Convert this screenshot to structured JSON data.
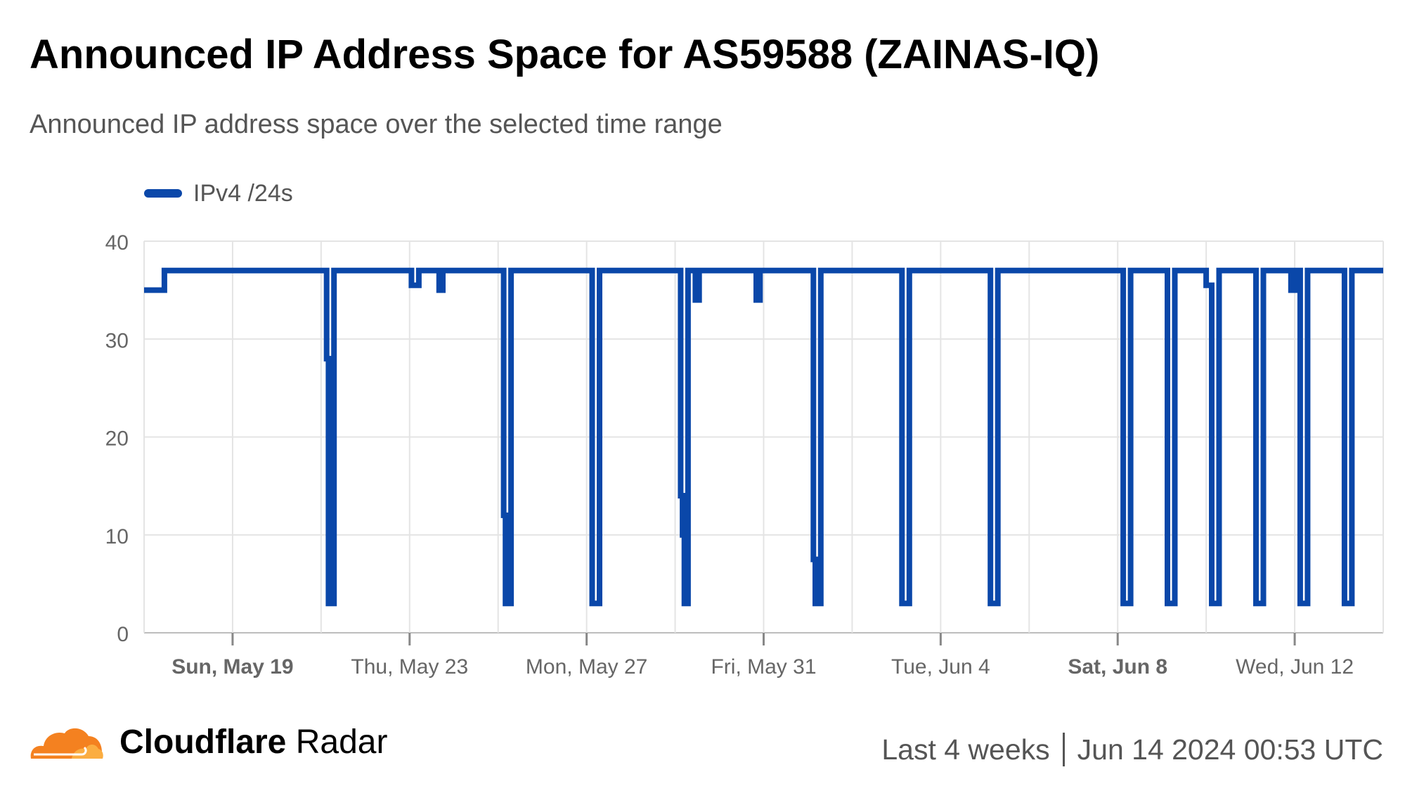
{
  "header": {
    "title": "Announced IP Address Space for AS59588 (ZAINAS-IQ)",
    "subtitle": "Announced IP address space over the selected time range"
  },
  "legend": {
    "label": "IPv4 /24s"
  },
  "footer": {
    "brand_bold": "Cloudflare",
    "brand_light": "Radar",
    "range": "Last 4 weeks",
    "timestamp": "Jun 14 2024 00:53 UTC"
  },
  "colors": {
    "series": "#0a47a9",
    "grid": "#e4e4e4",
    "brand": "#f48120"
  },
  "chart_data": {
    "type": "line",
    "x_start": "2024-05-17 00:00",
    "x_end": "2024-06-14 00:00",
    "ylim": [
      0,
      40
    ],
    "yticks": [
      0,
      10,
      20,
      30,
      40
    ],
    "xticks": [
      {
        "date": "2024-05-19",
        "label": "Sun, May 19",
        "bold": true
      },
      {
        "date": "2024-05-23",
        "label": "Thu, May 23",
        "bold": false
      },
      {
        "date": "2024-05-27",
        "label": "Mon, May 27",
        "bold": false
      },
      {
        "date": "2024-05-31",
        "label": "Fri, May 31",
        "bold": false
      },
      {
        "date": "2024-06-04",
        "label": "Tue, Jun 4",
        "bold": false
      },
      {
        "date": "2024-06-08",
        "label": "Sat, Jun 8",
        "bold": true
      },
      {
        "date": "2024-06-12",
        "label": "Wed, Jun 12",
        "bold": false
      }
    ],
    "grid": true,
    "legend_position": "top-left",
    "series": [
      {
        "name": "IPv4 /24s",
        "points": [
          [
            "2024-05-17 00:00",
            35
          ],
          [
            "2024-05-17 11:00",
            35
          ],
          [
            "2024-05-17 11:00",
            37
          ],
          [
            "2024-05-21 03:00",
            37
          ],
          [
            "2024-05-21 03:00",
            28
          ],
          [
            "2024-05-21 04:00",
            28
          ],
          [
            "2024-05-21 04:00",
            3
          ],
          [
            "2024-05-21 07:00",
            3
          ],
          [
            "2024-05-21 07:00",
            37
          ],
          [
            "2024-05-23 01:00",
            37
          ],
          [
            "2024-05-23 01:00",
            35.5
          ],
          [
            "2024-05-23 05:00",
            35.5
          ],
          [
            "2024-05-23 05:00",
            37
          ],
          [
            "2024-05-23 16:00",
            37
          ],
          [
            "2024-05-23 16:00",
            35
          ],
          [
            "2024-05-23 18:00",
            35
          ],
          [
            "2024-05-23 18:00",
            37
          ],
          [
            "2024-05-25 03:00",
            37
          ],
          [
            "2024-05-25 03:00",
            12
          ],
          [
            "2024-05-25 04:00",
            12
          ],
          [
            "2024-05-25 04:00",
            3
          ],
          [
            "2024-05-25 07:00",
            3
          ],
          [
            "2024-05-25 07:00",
            37
          ],
          [
            "2024-05-27 03:00",
            37
          ],
          [
            "2024-05-27 03:00",
            3
          ],
          [
            "2024-05-27 07:00",
            3
          ],
          [
            "2024-05-27 07:00",
            37
          ],
          [
            "2024-05-29 03:00",
            37
          ],
          [
            "2024-05-29 03:00",
            14
          ],
          [
            "2024-05-29 04:00",
            14
          ],
          [
            "2024-05-29 04:00",
            10
          ],
          [
            "2024-05-29 05:00",
            10
          ],
          [
            "2024-05-29 05:00",
            3
          ],
          [
            "2024-05-29 07:00",
            3
          ],
          [
            "2024-05-29 07:00",
            37
          ],
          [
            "2024-05-29 11:00",
            37
          ],
          [
            "2024-05-29 11:00",
            34
          ],
          [
            "2024-05-29 13:00",
            34
          ],
          [
            "2024-05-29 13:00",
            37
          ],
          [
            "2024-05-30 20:00",
            37
          ],
          [
            "2024-05-30 20:00",
            34
          ],
          [
            "2024-05-30 22:00",
            34
          ],
          [
            "2024-05-30 22:00",
            37
          ],
          [
            "2024-06-01 03:00",
            37
          ],
          [
            "2024-06-01 03:00",
            7.5
          ],
          [
            "2024-06-01 04:00",
            7.5
          ],
          [
            "2024-06-01 04:00",
            3
          ],
          [
            "2024-06-01 07:00",
            3
          ],
          [
            "2024-06-01 07:00",
            37
          ],
          [
            "2024-06-03 03:00",
            37
          ],
          [
            "2024-06-03 03:00",
            3
          ],
          [
            "2024-06-03 07:00",
            3
          ],
          [
            "2024-06-03 07:00",
            37
          ],
          [
            "2024-06-05 03:00",
            37
          ],
          [
            "2024-06-05 03:00",
            3
          ],
          [
            "2024-06-05 07:00",
            3
          ],
          [
            "2024-06-05 07:00",
            37
          ],
          [
            "2024-06-08 03:00",
            37
          ],
          [
            "2024-06-08 03:00",
            3
          ],
          [
            "2024-06-08 07:00",
            3
          ],
          [
            "2024-06-08 07:00",
            37
          ],
          [
            "2024-06-09 03:00",
            37
          ],
          [
            "2024-06-09 03:00",
            3
          ],
          [
            "2024-06-09 07:00",
            3
          ],
          [
            "2024-06-09 07:00",
            37
          ],
          [
            "2024-06-10 00:00",
            37
          ],
          [
            "2024-06-10 00:00",
            35.5
          ],
          [
            "2024-06-10 03:00",
            35.5
          ],
          [
            "2024-06-10 03:00",
            3
          ],
          [
            "2024-06-10 07:00",
            3
          ],
          [
            "2024-06-10 07:00",
            37
          ],
          [
            "2024-06-11 03:00",
            37
          ],
          [
            "2024-06-11 03:00",
            3
          ],
          [
            "2024-06-11 07:00",
            3
          ],
          [
            "2024-06-11 07:00",
            37
          ],
          [
            "2024-06-11 22:00",
            37
          ],
          [
            "2024-06-11 22:00",
            35
          ],
          [
            "2024-06-12 00:00",
            35
          ],
          [
            "2024-06-12 00:00",
            37
          ],
          [
            "2024-06-12 03:00",
            37
          ],
          [
            "2024-06-12 03:00",
            3
          ],
          [
            "2024-06-12 07:00",
            3
          ],
          [
            "2024-06-12 07:00",
            37
          ],
          [
            "2024-06-13 03:00",
            37
          ],
          [
            "2024-06-13 03:00",
            3
          ],
          [
            "2024-06-13 07:00",
            3
          ],
          [
            "2024-06-13 07:00",
            37
          ],
          [
            "2024-06-14 00:00",
            37
          ]
        ]
      }
    ]
  }
}
